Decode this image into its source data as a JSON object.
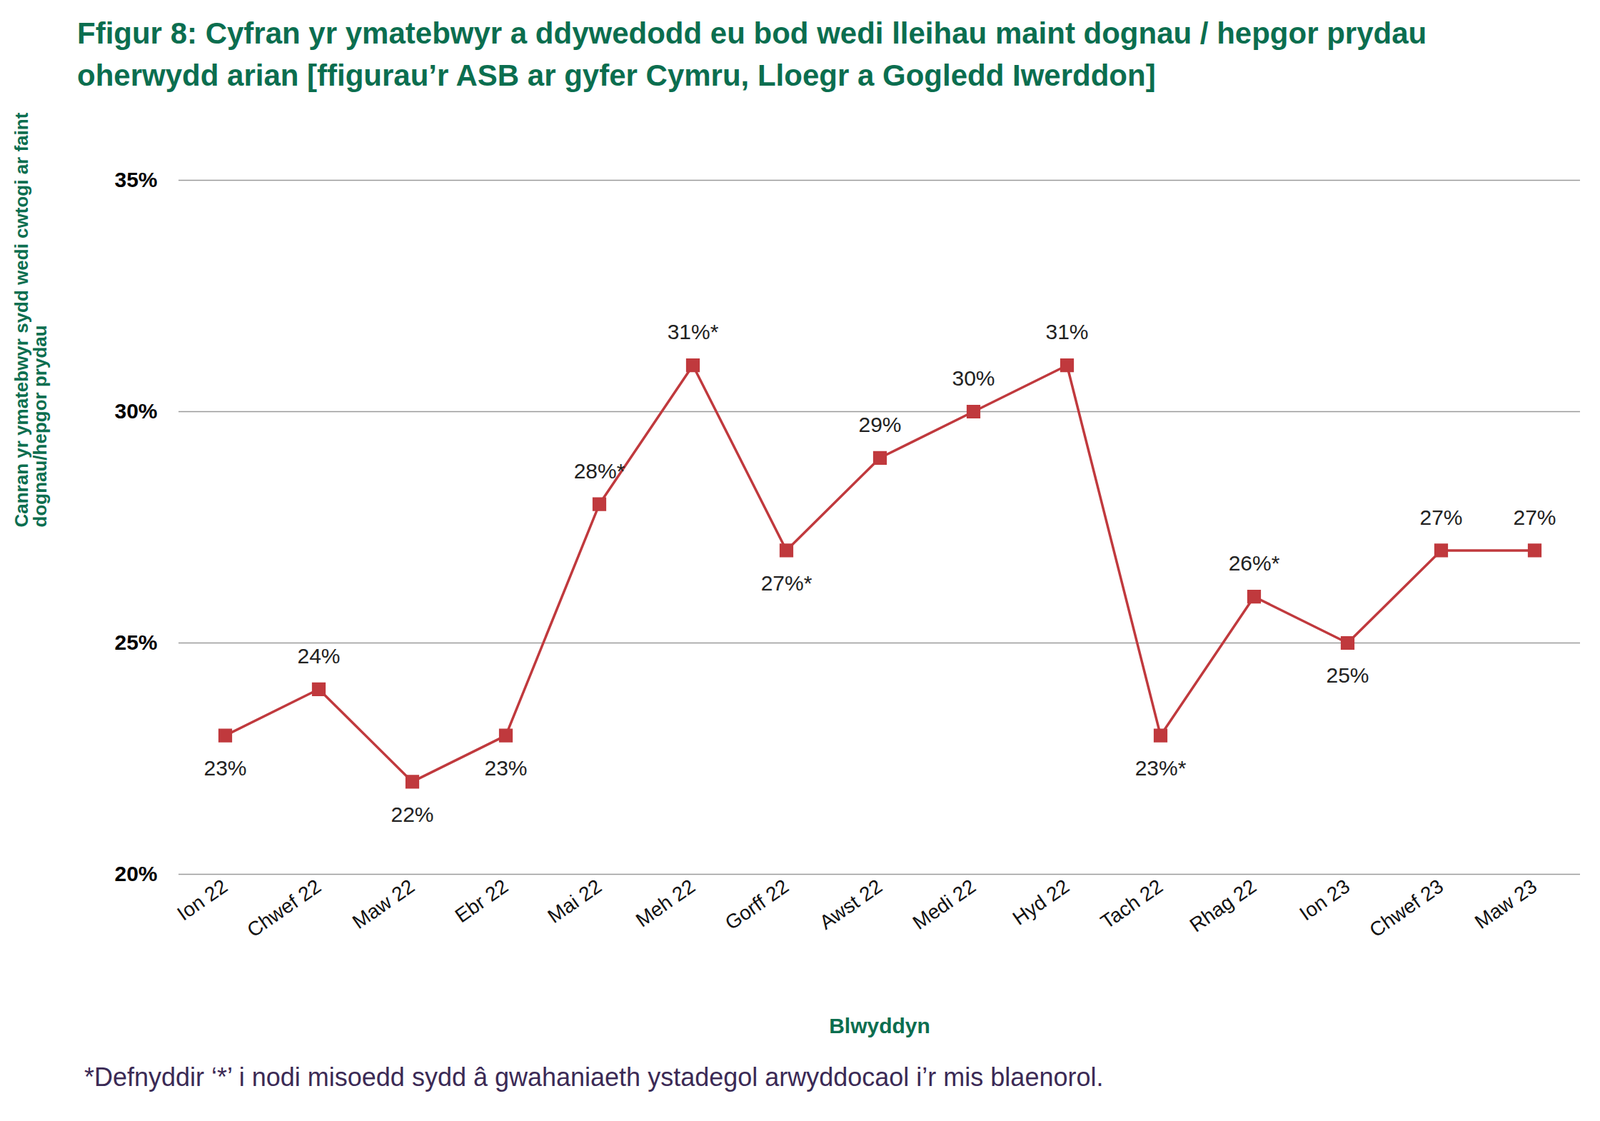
{
  "chart_data": {
    "type": "line",
    "title": "Ffigur 8: Cyfran yr ymatebwyr a ddywedodd eu bod wedi lleihau maint dognau / hepgor prydau oherwydd arian [ffigurau’r ASB ar gyfer Cymru, Lloegr a Gogledd Iwerddon]",
    "y_label": "Canran yr ymatebwyr sydd wedi cwtogi ar faint dognau/hepgor prydau",
    "x_label": "Blwyddyn",
    "footnote": "*Defnyddir ‘*’ i nodi misoedd sydd â gwahaniaeth ystadegol arwyddocaol i’r mis blaenorol.",
    "categories": [
      "Ion 22",
      "Chwef 22",
      "Maw 22",
      "Ebr 22",
      "Mai 22",
      "Meh 22",
      "Gorff 22",
      "Awst 22",
      "Medi 22",
      "Hyd 22",
      "Tach 22",
      "Rhag 22",
      "Ion 23",
      "Chwef 23",
      "Maw 23"
    ],
    "values": [
      23,
      24,
      22,
      23,
      28,
      31,
      27,
      29,
      30,
      31,
      23,
      26,
      25,
      27,
      27
    ],
    "value_labels": [
      "23%",
      "24%",
      "22%",
      "23%",
      "28%*",
      "31%*",
      "27%*",
      "29%",
      "30%",
      "31%",
      "23%*",
      "26%*",
      "25%",
      "27%",
      "27%"
    ],
    "color": "#c0393d",
    "marker": "square",
    "line_style": "solid",
    "data_labels": true,
    "grid": true,
    "ylim": [
      20,
      35
    ],
    "yticks": [
      {
        "value": 20,
        "label": "20%"
      },
      {
        "value": 25,
        "label": "25%"
      },
      {
        "value": 30,
        "label": "30%"
      },
      {
        "value": 35,
        "label": "35%"
      }
    ]
  }
}
